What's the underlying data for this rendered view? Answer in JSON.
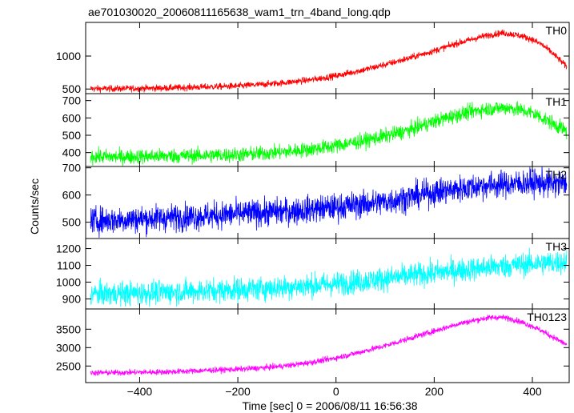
{
  "title": "ae701030020_20060811165638_wam1_trn_4band_long.qdp",
  "ylabel": "Counts/sec",
  "xlabel": "Time [sec] 0 = 2006/08/11 16:56:38",
  "xlim": [
    -510,
    475
  ],
  "x_ticks": [
    -400,
    -200,
    0,
    200,
    400
  ],
  "x_tick_labels": [
    "−400",
    "−200",
    "0",
    "200",
    "400"
  ],
  "chart_data": [
    {
      "type": "line",
      "name": "TH0",
      "color": "#ff0000",
      "ylim": [
        430,
        1510
      ],
      "y_ticks": [
        500,
        1000
      ],
      "x": [
        -500,
        -450,
        -400,
        -350,
        -300,
        -250,
        -200,
        -150,
        -100,
        -50,
        0,
        50,
        100,
        150,
        200,
        250,
        280,
        300,
        320,
        340,
        360,
        380,
        400,
        420,
        440,
        460,
        470
      ],
      "values": [
        505,
        505,
        510,
        515,
        525,
        535,
        545,
        570,
        600,
        640,
        700,
        780,
        870,
        970,
        1080,
        1200,
        1260,
        1300,
        1330,
        1350,
        1330,
        1300,
        1250,
        1170,
        1050,
        910,
        830
      ],
      "noise": 35
    },
    {
      "type": "line",
      "name": "TH1",
      "color": "#00ff00",
      "ylim": [
        320,
        740
      ],
      "y_ticks": [
        400,
        500,
        600,
        700
      ],
      "x": [
        -500,
        -450,
        -400,
        -350,
        -300,
        -250,
        -200,
        -150,
        -100,
        -50,
        0,
        50,
        100,
        150,
        200,
        250,
        300,
        350,
        400,
        420,
        440,
        460,
        470
      ],
      "values": [
        378,
        375,
        378,
        380,
        382,
        385,
        388,
        395,
        405,
        420,
        440,
        465,
        495,
        530,
        580,
        620,
        650,
        660,
        630,
        600,
        570,
        540,
        520
      ],
      "noise": 30
    },
    {
      "type": "line",
      "name": "TH2",
      "color": "#0000ff",
      "ylim": [
        440,
        705
      ],
      "y_ticks": [
        500,
        600,
        700
      ],
      "x": [
        -500,
        -400,
        -300,
        -200,
        -100,
        0,
        100,
        200,
        300,
        400,
        470
      ],
      "values": [
        505,
        512,
        520,
        530,
        540,
        555,
        575,
        610,
        635,
        645,
        640
      ],
      "noise": 35
    },
    {
      "type": "line",
      "name": "TH3",
      "color": "#00ffff",
      "ylim": [
        840,
        1260
      ],
      "y_ticks": [
        900,
        1000,
        1100,
        1200
      ],
      "x": [
        -500,
        -400,
        -300,
        -200,
        -100,
        0,
        100,
        200,
        300,
        400,
        470
      ],
      "values": [
        930,
        935,
        945,
        955,
        970,
        990,
        1020,
        1055,
        1085,
        1110,
        1120
      ],
      "noise": 50
    },
    {
      "type": "line",
      "name": "TH0123",
      "color": "#ff00ff",
      "ylim": [
        2050,
        4050
      ],
      "y_ticks": [
        2500,
        3000,
        3500
      ],
      "x": [
        -500,
        -450,
        -400,
        -350,
        -300,
        -250,
        -200,
        -150,
        -100,
        -50,
        0,
        50,
        100,
        150,
        200,
        250,
        300,
        320,
        340,
        360,
        380,
        400,
        420,
        440,
        460,
        470
      ],
      "values": [
        2320,
        2320,
        2330,
        2340,
        2360,
        2390,
        2410,
        2450,
        2510,
        2600,
        2720,
        2880,
        3050,
        3250,
        3450,
        3650,
        3790,
        3820,
        3820,
        3770,
        3680,
        3580,
        3450,
        3300,
        3150,
        3080
      ],
      "noise": 55
    }
  ]
}
